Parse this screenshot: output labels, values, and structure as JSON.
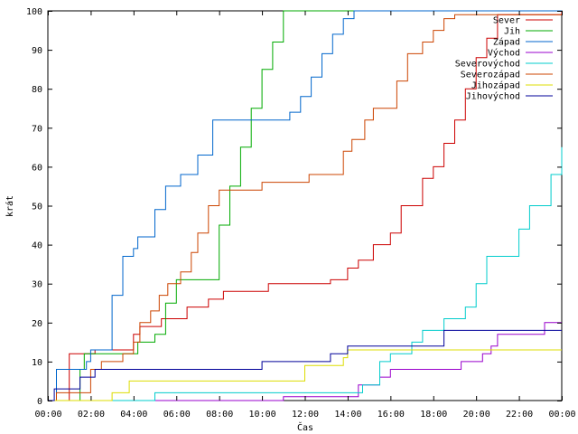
{
  "chart_data": {
    "type": "line",
    "step": true,
    "xlabel": "Čas",
    "ylabel": "krát",
    "xlim": [
      0,
      24
    ],
    "ylim": [
      0,
      100
    ],
    "x_ticks": [
      0,
      2,
      4,
      6,
      8,
      10,
      12,
      14,
      16,
      18,
      20,
      22,
      24
    ],
    "x_tick_labels": [
      "00:00",
      "02:00",
      "04:00",
      "06:00",
      "08:00",
      "10:00",
      "12:00",
      "14:00",
      "16:00",
      "18:00",
      "20:00",
      "22:00",
      "00:00"
    ],
    "y_ticks": [
      0,
      10,
      20,
      30,
      40,
      50,
      60,
      70,
      80,
      90,
      100
    ],
    "grid": false,
    "legend_position": "top-right",
    "series": [
      {
        "name": "Sever",
        "color": "#cc0000",
        "points": [
          [
            0,
            0
          ],
          [
            0.7,
            0
          ],
          [
            1,
            12
          ],
          [
            2,
            12
          ],
          [
            2.2,
            13
          ],
          [
            3.8,
            13
          ],
          [
            4,
            17
          ],
          [
            4.3,
            19
          ],
          [
            5.2,
            19
          ],
          [
            5.3,
            21
          ],
          [
            6.2,
            21
          ],
          [
            6.5,
            24
          ],
          [
            7.2,
            24
          ],
          [
            7.5,
            26
          ],
          [
            8,
            26
          ],
          [
            8.2,
            28
          ],
          [
            10.2,
            28
          ],
          [
            10.3,
            30
          ],
          [
            13,
            30
          ],
          [
            13.2,
            31
          ],
          [
            13.8,
            31
          ],
          [
            14,
            34
          ],
          [
            14.5,
            36
          ],
          [
            15,
            36
          ],
          [
            15.2,
            40
          ],
          [
            16,
            43
          ],
          [
            16.5,
            50
          ],
          [
            17,
            50
          ],
          [
            17.5,
            57
          ],
          [
            18,
            60
          ],
          [
            18.5,
            66
          ],
          [
            19,
            72
          ],
          [
            19.5,
            80
          ],
          [
            20,
            88
          ],
          [
            20.5,
            93
          ],
          [
            21,
            99
          ],
          [
            24,
            100
          ]
        ]
      },
      {
        "name": "Jih",
        "color": "#00aa00",
        "points": [
          [
            0,
            0
          ],
          [
            1.3,
            0
          ],
          [
            1.5,
            8
          ],
          [
            1.7,
            12
          ],
          [
            2.5,
            12
          ],
          [
            3.5,
            12
          ],
          [
            4.2,
            15
          ],
          [
            4.8,
            15
          ],
          [
            5,
            17
          ],
          [
            5.5,
            25
          ],
          [
            6,
            31
          ],
          [
            7.5,
            31
          ],
          [
            8,
            45
          ],
          [
            8.5,
            55
          ],
          [
            9,
            65
          ],
          [
            9.5,
            75
          ],
          [
            10,
            85
          ],
          [
            10.5,
            92
          ],
          [
            11,
            100
          ],
          [
            24,
            100
          ]
        ]
      },
      {
        "name": "Západ",
        "color": "#0066cc",
        "points": [
          [
            0,
            0
          ],
          [
            0.2,
            0
          ],
          [
            0.4,
            8
          ],
          [
            1.5,
            8
          ],
          [
            1.8,
            10
          ],
          [
            2,
            13
          ],
          [
            3,
            27
          ],
          [
            3.5,
            37
          ],
          [
            4,
            39
          ],
          [
            4.2,
            42
          ],
          [
            5,
            49
          ],
          [
            5.5,
            55
          ],
          [
            6.2,
            58
          ],
          [
            7,
            63
          ],
          [
            7.7,
            72
          ],
          [
            9.5,
            72
          ],
          [
            10.2,
            72
          ],
          [
            11.3,
            74
          ],
          [
            11.8,
            78
          ],
          [
            12.3,
            83
          ],
          [
            12.8,
            89
          ],
          [
            13.3,
            94
          ],
          [
            13.8,
            98
          ],
          [
            14.3,
            100
          ],
          [
            24,
            100
          ]
        ]
      },
      {
        "name": "Východ",
        "color": "#9900cc",
        "points": [
          [
            0,
            0
          ],
          [
            10.8,
            0
          ],
          [
            11,
            1
          ],
          [
            14.3,
            1
          ],
          [
            14.5,
            4
          ],
          [
            15.3,
            4
          ],
          [
            15.5,
            6
          ],
          [
            16,
            8
          ],
          [
            19,
            8
          ],
          [
            19.3,
            10
          ],
          [
            20.3,
            12
          ],
          [
            20.7,
            14
          ],
          [
            21,
            17
          ],
          [
            23,
            17
          ],
          [
            23.2,
            20
          ],
          [
            24,
            20
          ]
        ]
      },
      {
        "name": "Severovýchod",
        "color": "#00cccc",
        "points": [
          [
            0,
            0
          ],
          [
            4.8,
            0
          ],
          [
            5,
            2
          ],
          [
            14.2,
            2
          ],
          [
            14.7,
            4
          ],
          [
            15.5,
            10
          ],
          [
            16,
            12
          ],
          [
            17,
            15
          ],
          [
            17.5,
            18
          ],
          [
            18,
            18
          ],
          [
            18.5,
            21
          ],
          [
            19.2,
            21
          ],
          [
            19.5,
            24
          ],
          [
            20,
            30
          ],
          [
            20.5,
            37
          ],
          [
            21.5,
            37
          ],
          [
            22,
            44
          ],
          [
            22.5,
            50
          ],
          [
            23.2,
            50
          ],
          [
            23.5,
            58
          ],
          [
            24,
            65
          ]
        ]
      },
      {
        "name": "Severozápad",
        "color": "#cc4400",
        "points": [
          [
            0,
            0
          ],
          [
            0.2,
            0
          ],
          [
            0.4,
            2
          ],
          [
            1.5,
            2
          ],
          [
            2,
            8
          ],
          [
            2.5,
            10
          ],
          [
            3.5,
            12
          ],
          [
            4,
            15
          ],
          [
            4.3,
            20
          ],
          [
            4.8,
            23
          ],
          [
            5.2,
            27
          ],
          [
            5.6,
            30
          ],
          [
            6.2,
            33
          ],
          [
            6.7,
            38
          ],
          [
            7,
            43
          ],
          [
            7.5,
            50
          ],
          [
            8,
            54
          ],
          [
            9.5,
            54
          ],
          [
            10,
            56
          ],
          [
            12,
            56
          ],
          [
            12.2,
            58
          ],
          [
            13.5,
            58
          ],
          [
            13.8,
            64
          ],
          [
            14.2,
            67
          ],
          [
            14.8,
            72
          ],
          [
            15.2,
            75
          ],
          [
            16,
            75
          ],
          [
            16.3,
            82
          ],
          [
            16.8,
            89
          ],
          [
            17.5,
            92
          ],
          [
            18,
            95
          ],
          [
            18.5,
            98
          ],
          [
            19,
            99
          ],
          [
            24,
            99
          ]
        ]
      },
      {
        "name": "Jihozápad",
        "color": "#dddd00",
        "points": [
          [
            0,
            0
          ],
          [
            2.8,
            0
          ],
          [
            3,
            2
          ],
          [
            3.5,
            2
          ],
          [
            3.8,
            5
          ],
          [
            11.5,
            5
          ],
          [
            12,
            9
          ],
          [
            13.5,
            9
          ],
          [
            13.8,
            11
          ],
          [
            14,
            13
          ],
          [
            24,
            13
          ]
        ]
      },
      {
        "name": "Jihovýchod",
        "color": "#000099",
        "points": [
          [
            0,
            0
          ],
          [
            0.2,
            0
          ],
          [
            0.3,
            3
          ],
          [
            1.3,
            3
          ],
          [
            1.5,
            6
          ],
          [
            2.2,
            8
          ],
          [
            9.5,
            8
          ],
          [
            10,
            10
          ],
          [
            12.5,
            10
          ],
          [
            13.2,
            12
          ],
          [
            13.6,
            12
          ],
          [
            14,
            14
          ],
          [
            18,
            14
          ],
          [
            18.5,
            18
          ],
          [
            24,
            18
          ]
        ]
      }
    ]
  }
}
